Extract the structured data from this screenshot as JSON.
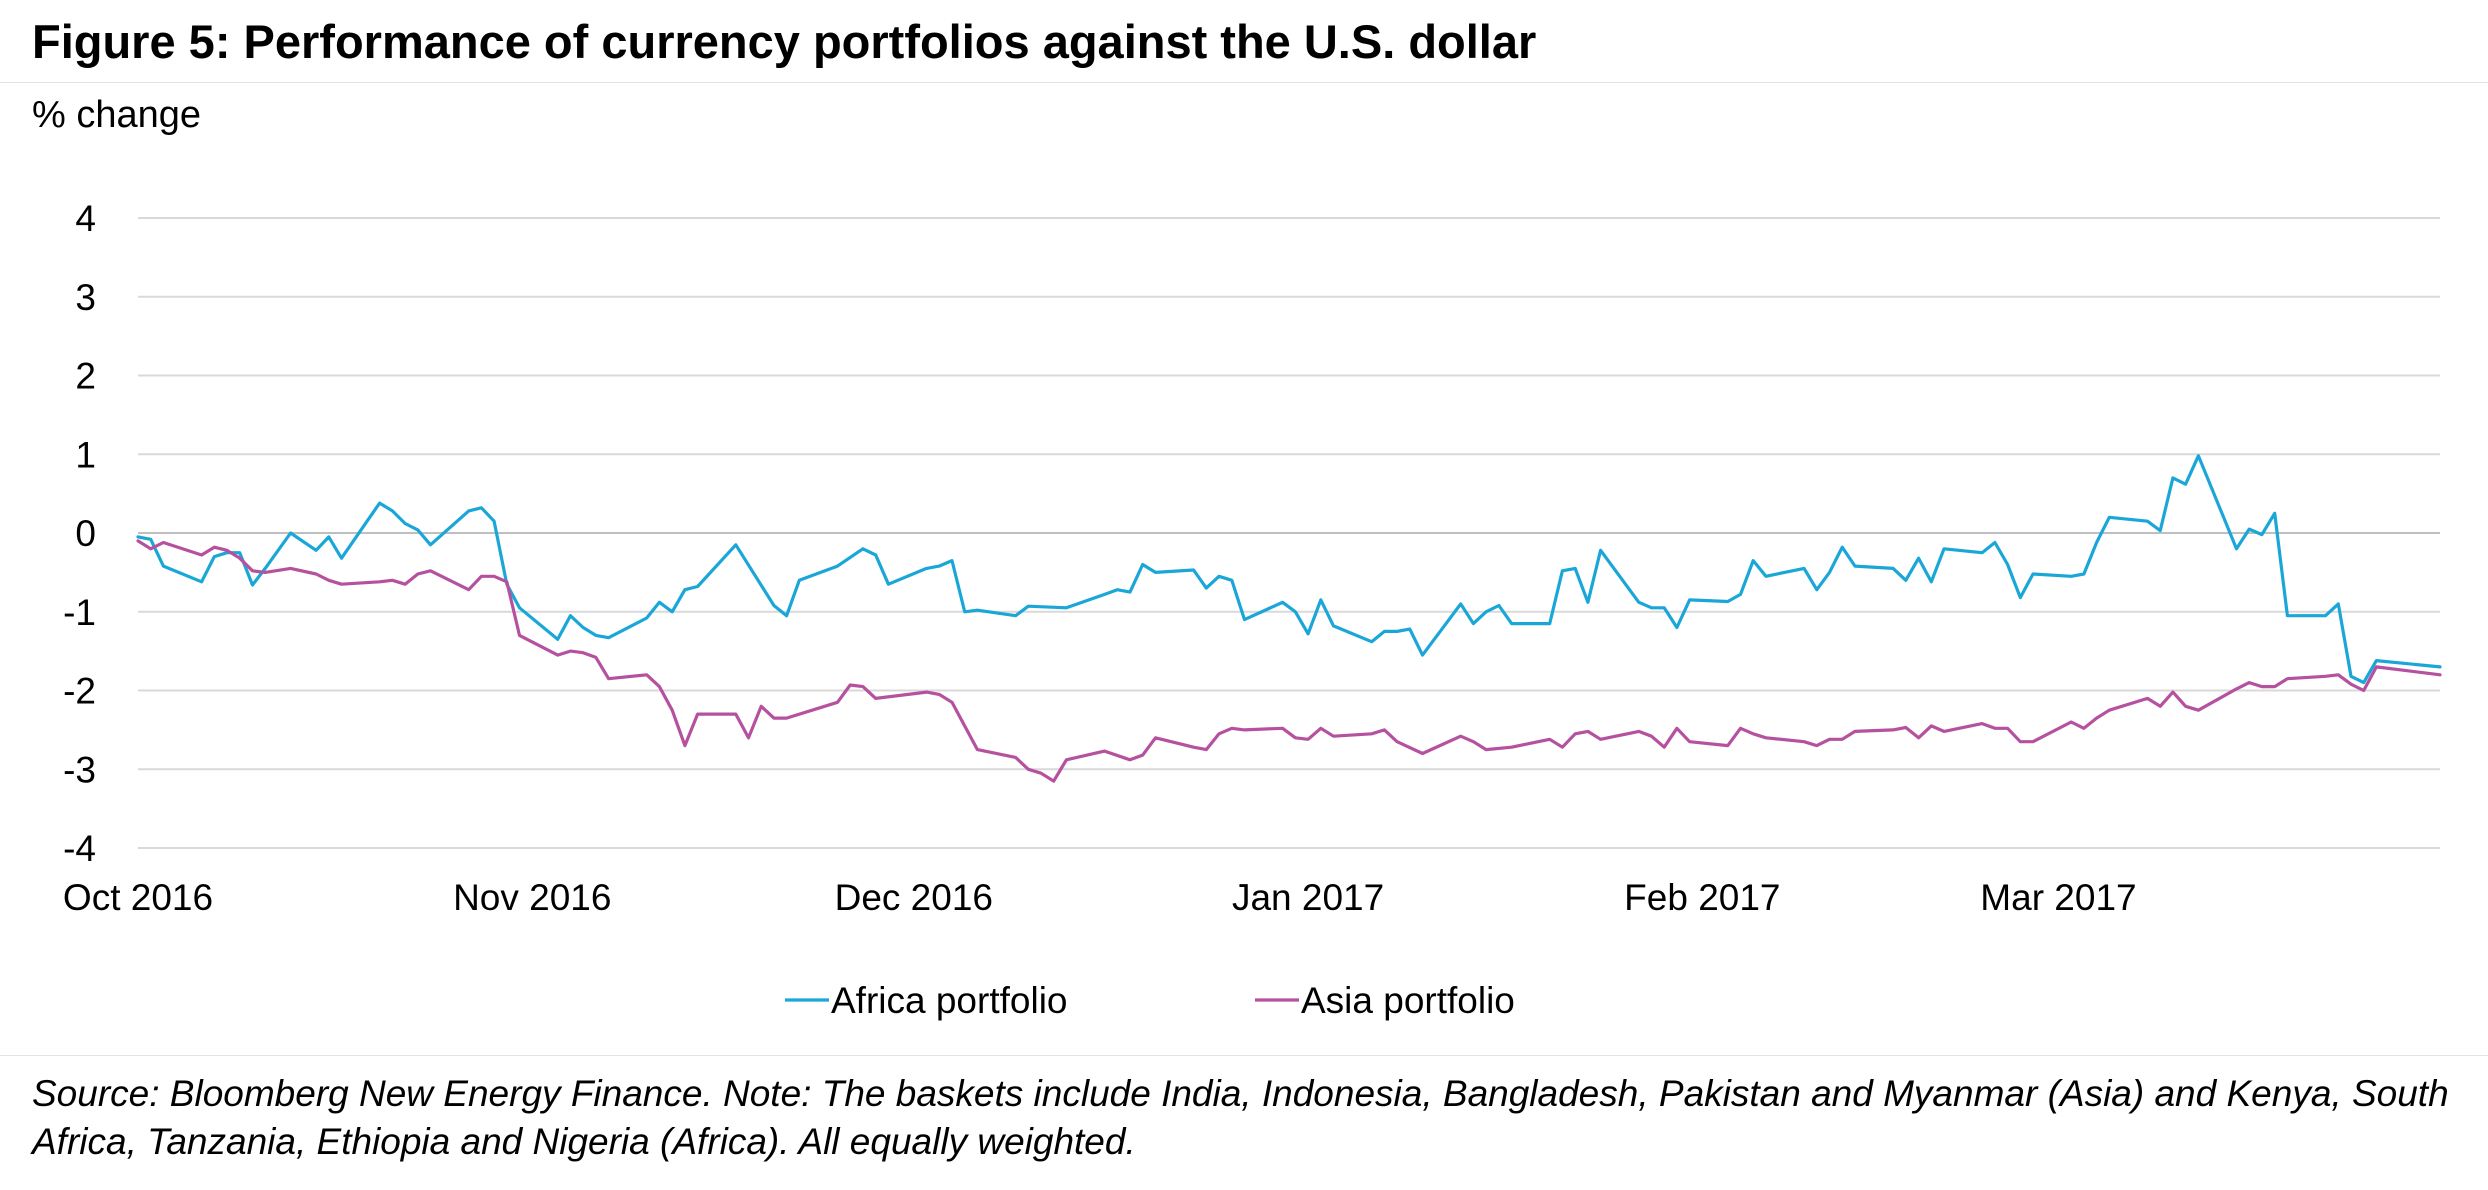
{
  "chart_data": {
    "type": "line",
    "title": "Figure 5: Performance of currency portfolios against the U.S. dollar",
    "ylabel": "% change",
    "ylim": [
      -4,
      4
    ],
    "yticks": [
      4,
      3,
      2,
      1,
      0,
      -1,
      -2,
      -3,
      -4
    ],
    "xlim": [
      "2016-10-01",
      "2017-03-31"
    ],
    "xticks": [
      {
        "label": "Oct 2016",
        "date": "2016-10-01"
      },
      {
        "label": "Nov 2016",
        "date": "2016-11-01"
      },
      {
        "label": "Dec 2016",
        "date": "2016-12-01"
      },
      {
        "label": "Jan 2017",
        "date": "2017-01-01"
      },
      {
        "label": "Feb 2017",
        "date": "2017-02-01"
      },
      {
        "label": "Mar 2017",
        "date": "2017-03-01"
      }
    ],
    "grid": true,
    "legend_position": "bottom-center",
    "series": [
      {
        "name": "Africa portfolio",
        "color": "#1aa7d8",
        "points": [
          [
            "2016-10-01",
            -0.05
          ],
          [
            "2016-10-02",
            -0.08
          ],
          [
            "2016-10-03",
            -0.42
          ],
          [
            "2016-10-06",
            -0.62
          ],
          [
            "2016-10-07",
            -0.3
          ],
          [
            "2016-10-08",
            -0.25
          ],
          [
            "2016-10-09",
            -0.25
          ],
          [
            "2016-10-10",
            -0.66
          ],
          [
            "2016-10-11",
            -0.45
          ],
          [
            "2016-10-13",
            0.0
          ],
          [
            "2016-10-15",
            -0.22
          ],
          [
            "2016-10-16",
            -0.05
          ],
          [
            "2016-10-17",
            -0.32
          ],
          [
            "2016-10-20",
            0.38
          ],
          [
            "2016-10-21",
            0.28
          ],
          [
            "2016-10-22",
            0.12
          ],
          [
            "2016-10-23",
            0.04
          ],
          [
            "2016-10-24",
            -0.15
          ],
          [
            "2016-10-27",
            0.28
          ],
          [
            "2016-10-28",
            0.32
          ],
          [
            "2016-10-29",
            0.15
          ],
          [
            "2016-10-30",
            -0.65
          ],
          [
            "2016-10-31",
            -0.95
          ],
          [
            "2016-11-03",
            -1.35
          ],
          [
            "2016-11-04",
            -1.05
          ],
          [
            "2016-11-05",
            -1.2
          ],
          [
            "2016-11-06",
            -1.3
          ],
          [
            "2016-11-07",
            -1.33
          ],
          [
            "2016-11-10",
            -1.08
          ],
          [
            "2016-11-11",
            -0.88
          ],
          [
            "2016-11-12",
            -1.0
          ],
          [
            "2016-11-13",
            -0.72
          ],
          [
            "2016-11-14",
            -0.68
          ],
          [
            "2016-11-17",
            -0.15
          ],
          [
            "2016-11-20",
            -0.92
          ],
          [
            "2016-11-21",
            -1.05
          ],
          [
            "2016-11-22",
            -0.6
          ],
          [
            "2016-11-25",
            -0.42
          ],
          [
            "2016-11-27",
            -0.2
          ],
          [
            "2016-11-28",
            -0.28
          ],
          [
            "2016-11-29",
            -0.65
          ],
          [
            "2016-12-02",
            -0.45
          ],
          [
            "2016-12-03",
            -0.42
          ],
          [
            "2016-12-04",
            -0.35
          ],
          [
            "2016-12-05",
            -1.0
          ],
          [
            "2016-12-06",
            -0.98
          ],
          [
            "2016-12-09",
            -1.05
          ],
          [
            "2016-12-10",
            -0.93
          ],
          [
            "2016-12-13",
            -0.95
          ],
          [
            "2016-12-16",
            -0.78
          ],
          [
            "2016-12-17",
            -0.72
          ],
          [
            "2016-12-18",
            -0.75
          ],
          [
            "2016-12-19",
            -0.4
          ],
          [
            "2016-12-20",
            -0.5
          ],
          [
            "2016-12-23",
            -0.47
          ],
          [
            "2016-12-24",
            -0.7
          ],
          [
            "2016-12-25",
            -0.55
          ],
          [
            "2016-12-26",
            -0.6
          ],
          [
            "2016-12-27",
            -1.1
          ],
          [
            "2016-12-30",
            -0.88
          ],
          [
            "2016-12-31",
            -1.0
          ],
          [
            "2017-01-01",
            -1.28
          ],
          [
            "2017-01-02",
            -0.85
          ],
          [
            "2017-01-03",
            -1.18
          ],
          [
            "2017-01-06",
            -1.38
          ],
          [
            "2017-01-07",
            -1.25
          ],
          [
            "2017-01-08",
            -1.25
          ],
          [
            "2017-01-09",
            -1.22
          ],
          [
            "2017-01-10",
            -1.55
          ],
          [
            "2017-01-13",
            -0.9
          ],
          [
            "2017-01-14",
            -1.15
          ],
          [
            "2017-01-15",
            -1.0
          ],
          [
            "2017-01-16",
            -0.92
          ],
          [
            "2017-01-17",
            -1.15
          ],
          [
            "2017-01-20",
            -1.15
          ],
          [
            "2017-01-21",
            -0.48
          ],
          [
            "2017-01-22",
            -0.45
          ],
          [
            "2017-01-23",
            -0.88
          ],
          [
            "2017-01-24",
            -0.22
          ],
          [
            "2017-01-27",
            -0.88
          ],
          [
            "2017-01-28",
            -0.95
          ],
          [
            "2017-01-29",
            -0.95
          ],
          [
            "2017-01-30",
            -1.2
          ],
          [
            "2017-01-31",
            -0.85
          ],
          [
            "2017-02-03",
            -0.87
          ],
          [
            "2017-02-04",
            -0.78
          ],
          [
            "2017-02-05",
            -0.35
          ],
          [
            "2017-02-06",
            -0.55
          ],
          [
            "2017-02-09",
            -0.45
          ],
          [
            "2017-02-10",
            -0.72
          ],
          [
            "2017-02-11",
            -0.5
          ],
          [
            "2017-02-12",
            -0.18
          ],
          [
            "2017-02-13",
            -0.42
          ],
          [
            "2017-02-16",
            -0.45
          ],
          [
            "2017-02-17",
            -0.6
          ],
          [
            "2017-02-18",
            -0.32
          ],
          [
            "2017-02-19",
            -0.62
          ],
          [
            "2017-02-20",
            -0.2
          ],
          [
            "2017-02-23",
            -0.25
          ],
          [
            "2017-02-24",
            -0.12
          ],
          [
            "2017-02-25",
            -0.4
          ],
          [
            "2017-02-26",
            -0.82
          ],
          [
            "2017-02-27",
            -0.52
          ],
          [
            "2017-03-02",
            -0.55
          ],
          [
            "2017-03-03",
            -0.52
          ],
          [
            "2017-03-04",
            -0.12
          ],
          [
            "2017-03-05",
            0.2
          ],
          [
            "2017-03-08",
            0.15
          ],
          [
            "2017-03-09",
            0.03
          ],
          [
            "2017-03-10",
            0.7
          ],
          [
            "2017-03-11",
            0.62
          ],
          [
            "2017-03-12",
            0.98
          ],
          [
            "2017-03-15",
            -0.2
          ],
          [
            "2017-03-16",
            0.05
          ],
          [
            "2017-03-17",
            -0.02
          ],
          [
            "2017-03-18",
            0.25
          ],
          [
            "2017-03-19",
            -1.05
          ],
          [
            "2017-03-22",
            -1.05
          ],
          [
            "2017-03-23",
            -0.9
          ],
          [
            "2017-03-24",
            -1.82
          ],
          [
            "2017-03-25",
            -1.9
          ],
          [
            "2017-03-26",
            -1.62
          ],
          [
            "2017-03-31",
            -1.7
          ]
        ]
      },
      {
        "name": "Asia portfolio",
        "color": "#b5519f",
        "points": [
          [
            "2016-10-01",
            -0.1
          ],
          [
            "2016-10-02",
            -0.2
          ],
          [
            "2016-10-03",
            -0.12
          ],
          [
            "2016-10-06",
            -0.28
          ],
          [
            "2016-10-07",
            -0.18
          ],
          [
            "2016-10-08",
            -0.22
          ],
          [
            "2016-10-09",
            -0.32
          ],
          [
            "2016-10-10",
            -0.48
          ],
          [
            "2016-10-11",
            -0.5
          ],
          [
            "2016-10-13",
            -0.45
          ],
          [
            "2016-10-15",
            -0.52
          ],
          [
            "2016-10-16",
            -0.6
          ],
          [
            "2016-10-17",
            -0.65
          ],
          [
            "2016-10-20",
            -0.62
          ],
          [
            "2016-10-21",
            -0.6
          ],
          [
            "2016-10-22",
            -0.65
          ],
          [
            "2016-10-23",
            -0.52
          ],
          [
            "2016-10-24",
            -0.48
          ],
          [
            "2016-10-27",
            -0.72
          ],
          [
            "2016-10-28",
            -0.55
          ],
          [
            "2016-10-29",
            -0.55
          ],
          [
            "2016-10-30",
            -0.62
          ],
          [
            "2016-10-31",
            -1.3
          ],
          [
            "2016-11-03",
            -1.55
          ],
          [
            "2016-11-04",
            -1.5
          ],
          [
            "2016-11-05",
            -1.52
          ],
          [
            "2016-11-06",
            -1.58
          ],
          [
            "2016-11-07",
            -1.85
          ],
          [
            "2016-11-10",
            -1.8
          ],
          [
            "2016-11-11",
            -1.95
          ],
          [
            "2016-11-12",
            -2.25
          ],
          [
            "2016-11-13",
            -2.7
          ],
          [
            "2016-11-14",
            -2.3
          ],
          [
            "2016-11-17",
            -2.3
          ],
          [
            "2016-11-18",
            -2.6
          ],
          [
            "2016-11-19",
            -2.2
          ],
          [
            "2016-11-20",
            -2.35
          ],
          [
            "2016-11-21",
            -2.35
          ],
          [
            "2016-11-25",
            -2.15
          ],
          [
            "2016-11-26",
            -1.93
          ],
          [
            "2016-11-27",
            -1.95
          ],
          [
            "2016-11-28",
            -2.1
          ],
          [
            "2016-12-02",
            -2.02
          ],
          [
            "2016-12-03",
            -2.05
          ],
          [
            "2016-12-04",
            -2.15
          ],
          [
            "2016-12-06",
            -2.75
          ],
          [
            "2016-12-09",
            -2.85
          ],
          [
            "2016-12-10",
            -3.0
          ],
          [
            "2016-12-11",
            -3.05
          ],
          [
            "2016-12-12",
            -3.15
          ],
          [
            "2016-12-13",
            -2.88
          ],
          [
            "2016-12-16",
            -2.77
          ],
          [
            "2016-12-18",
            -2.88
          ],
          [
            "2016-12-19",
            -2.82
          ],
          [
            "2016-12-20",
            -2.6
          ],
          [
            "2016-12-23",
            -2.72
          ],
          [
            "2016-12-24",
            -2.75
          ],
          [
            "2016-12-25",
            -2.55
          ],
          [
            "2016-12-26",
            -2.48
          ],
          [
            "2016-12-27",
            -2.5
          ],
          [
            "2016-12-30",
            -2.48
          ],
          [
            "2016-12-31",
            -2.6
          ],
          [
            "2017-01-01",
            -2.62
          ],
          [
            "2017-01-02",
            -2.48
          ],
          [
            "2017-01-03",
            -2.58
          ],
          [
            "2017-01-06",
            -2.55
          ],
          [
            "2017-01-07",
            -2.5
          ],
          [
            "2017-01-08",
            -2.65
          ],
          [
            "2017-01-10",
            -2.8
          ],
          [
            "2017-01-13",
            -2.58
          ],
          [
            "2017-01-14",
            -2.65
          ],
          [
            "2017-01-15",
            -2.75
          ],
          [
            "2017-01-17",
            -2.72
          ],
          [
            "2017-01-20",
            -2.62
          ],
          [
            "2017-01-21",
            -2.72
          ],
          [
            "2017-01-22",
            -2.55
          ],
          [
            "2017-01-23",
            -2.52
          ],
          [
            "2017-01-24",
            -2.62
          ],
          [
            "2017-01-27",
            -2.52
          ],
          [
            "2017-01-28",
            -2.58
          ],
          [
            "2017-01-29",
            -2.72
          ],
          [
            "2017-01-30",
            -2.48
          ],
          [
            "2017-01-31",
            -2.65
          ],
          [
            "2017-02-03",
            -2.7
          ],
          [
            "2017-02-04",
            -2.48
          ],
          [
            "2017-02-05",
            -2.55
          ],
          [
            "2017-02-06",
            -2.6
          ],
          [
            "2017-02-09",
            -2.65
          ],
          [
            "2017-02-10",
            -2.7
          ],
          [
            "2017-02-11",
            -2.62
          ],
          [
            "2017-02-12",
            -2.62
          ],
          [
            "2017-02-13",
            -2.52
          ],
          [
            "2017-02-16",
            -2.5
          ],
          [
            "2017-02-17",
            -2.47
          ],
          [
            "2017-02-18",
            -2.6
          ],
          [
            "2017-02-19",
            -2.45
          ],
          [
            "2017-02-20",
            -2.52
          ],
          [
            "2017-02-23",
            -2.42
          ],
          [
            "2017-02-24",
            -2.48
          ],
          [
            "2017-02-25",
            -2.48
          ],
          [
            "2017-02-26",
            -2.65
          ],
          [
            "2017-02-27",
            -2.65
          ],
          [
            "2017-03-02",
            -2.4
          ],
          [
            "2017-03-03",
            -2.48
          ],
          [
            "2017-03-04",
            -2.35
          ],
          [
            "2017-03-05",
            -2.25
          ],
          [
            "2017-03-08",
            -2.1
          ],
          [
            "2017-03-09",
            -2.2
          ],
          [
            "2017-03-10",
            -2.02
          ],
          [
            "2017-03-11",
            -2.2
          ],
          [
            "2017-03-12",
            -2.25
          ],
          [
            "2017-03-15",
            -1.98
          ],
          [
            "2017-03-16",
            -1.9
          ],
          [
            "2017-03-17",
            -1.95
          ],
          [
            "2017-03-18",
            -1.95
          ],
          [
            "2017-03-19",
            -1.85
          ],
          [
            "2017-03-22",
            -1.82
          ],
          [
            "2017-03-23",
            -1.8
          ],
          [
            "2017-03-24",
            -1.92
          ],
          [
            "2017-03-25",
            -2.0
          ],
          [
            "2017-03-26",
            -1.7
          ],
          [
            "2017-03-31",
            -1.8
          ]
        ]
      }
    ]
  },
  "note": "Source: Bloomberg New Energy Finance. Note: The baskets include India, Indonesia, Bangladesh, Pakistan and Myanmar (Asia) and Kenya, South Africa, Tanzania, Ethiopia and Nigeria (Africa). All equally weighted."
}
